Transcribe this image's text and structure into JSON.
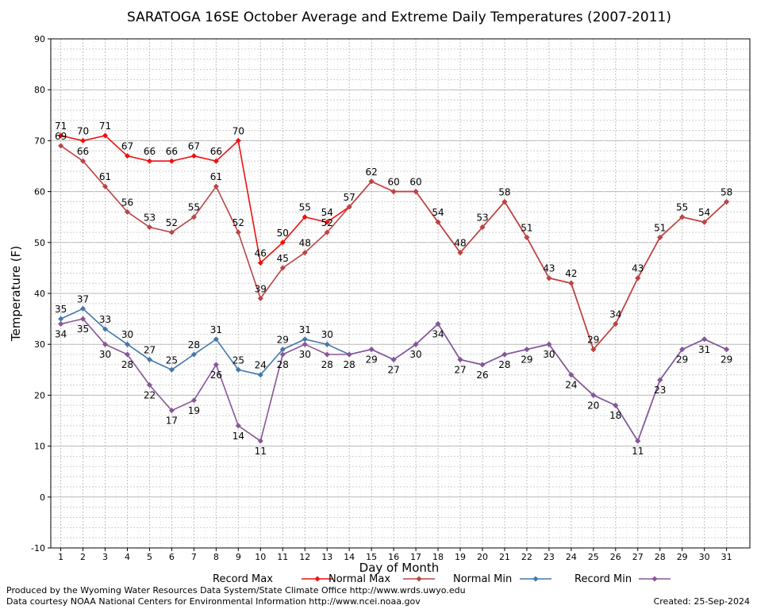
{
  "chart_data": {
    "type": "line",
    "title": "SARATOGA 16SE October Average and Extreme Daily Temperatures (2007-2011)",
    "xlabel": "Day of Month",
    "ylabel": "Temperature (F)",
    "ylim": [
      -10,
      90
    ],
    "yticks": [
      "-10",
      "0",
      "10",
      "20",
      "30",
      "40",
      "50",
      "60",
      "70",
      "80",
      "90"
    ],
    "x": [
      1,
      2,
      3,
      4,
      5,
      6,
      7,
      8,
      9,
      10,
      11,
      12,
      13,
      14,
      15,
      16,
      17,
      18,
      19,
      20,
      21,
      22,
      23,
      24,
      25,
      26,
      27,
      28,
      29,
      30,
      31
    ],
    "xticks": [
      "1",
      "2",
      "3",
      "4",
      "5",
      "6",
      "7",
      "8",
      "9",
      "10",
      "11",
      "12",
      "13",
      "14",
      "15",
      "16",
      "17",
      "18",
      "19",
      "20",
      "21",
      "22",
      "23",
      "24",
      "25",
      "26",
      "27",
      "28",
      "29",
      "30",
      "31"
    ],
    "grid": true,
    "legend_position": "bottom",
    "series": [
      {
        "name": "Record Max",
        "color": "#ee1111",
        "label_color": "#000000",
        "values": [
          71,
          70,
          71,
          67,
          66,
          66,
          67,
          66,
          70,
          46,
          50,
          55,
          54,
          57,
          62,
          60,
          60,
          54,
          48,
          53,
          58,
          51,
          43,
          42,
          29,
          34,
          43,
          51,
          55,
          54,
          58
        ]
      },
      {
        "name": "Normal Max",
        "color": "#bb4444",
        "label_color": "#000000",
        "values": [
          69,
          66,
          61,
          56,
          53,
          52,
          55,
          61,
          52,
          39,
          45,
          48,
          52,
          57,
          62,
          60,
          60,
          54,
          48,
          53,
          58,
          51,
          43,
          42,
          29,
          34,
          43,
          51,
          55,
          54,
          58
        ]
      },
      {
        "name": "Normal Min",
        "color": "#4477aa",
        "label_color": "#000000",
        "values": [
          35,
          37,
          33,
          30,
          27,
          25,
          28,
          31,
          25,
          24,
          29,
          31,
          30,
          28,
          29,
          27,
          30,
          34,
          27,
          26,
          28,
          29,
          30,
          24,
          20,
          18,
          11,
          23,
          29,
          31,
          29
        ]
      },
      {
        "name": "Record Min",
        "color": "#885599",
        "label_color": "#000000",
        "values": [
          34,
          35,
          30,
          28,
          22,
          17,
          19,
          26,
          14,
          11,
          28,
          30,
          28,
          28,
          29,
          27,
          30,
          34,
          27,
          26,
          28,
          29,
          30,
          24,
          20,
          18,
          11,
          23,
          29,
          31,
          29
        ]
      }
    ]
  },
  "footer": {
    "line1": "Produced by the Wyoming Water Resources Data System/State Climate Office http://www.wrds.uwyo.edu",
    "line2": "Data courtesy NOAA National Centers for Environmental Information http://www.ncei.noaa.gov",
    "created": "Created:  25-Sep-2024"
  }
}
